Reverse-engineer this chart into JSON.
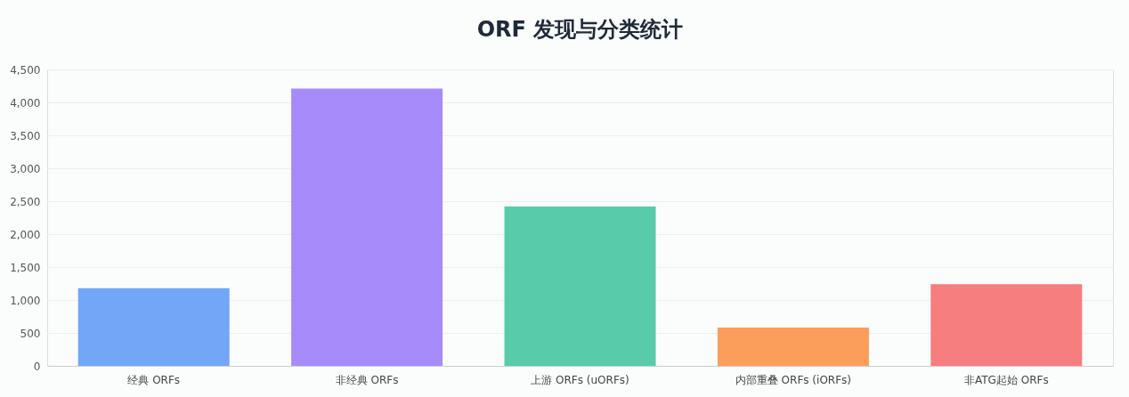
{
  "chart_data": {
    "type": "bar",
    "title": "ORF 发现与分类统计",
    "categories": [
      "经典 ORFs",
      "非经典 ORFs",
      "上游 ORFs (uORFs)",
      "内部重叠 ORFs (iORFs)",
      "非ATG起始 ORFs"
    ],
    "values": [
      1180,
      4210,
      2420,
      580,
      1240
    ],
    "colors": [
      "#74a6f8",
      "#a78bfa",
      "#58cbaa",
      "#fb9d5b",
      "#f67e7e"
    ],
    "ylim": [
      0,
      4500
    ],
    "yticks": [
      0,
      500,
      {
        "value": 1000,
        "label": "1,000"
      },
      {
        "value": 1500,
        "label": "1,500"
      },
      {
        "value": 2000,
        "label": "2,000"
      },
      {
        "value": 2500,
        "label": "2,500"
      },
      {
        "value": 3000,
        "label": "3,000"
      },
      {
        "value": 3500,
        "label": "3,500"
      },
      {
        "value": 4000,
        "label": "4,000"
      },
      {
        "value": 4500,
        "label": "4,500"
      }
    ],
    "grid": "y",
    "legend": false
  }
}
